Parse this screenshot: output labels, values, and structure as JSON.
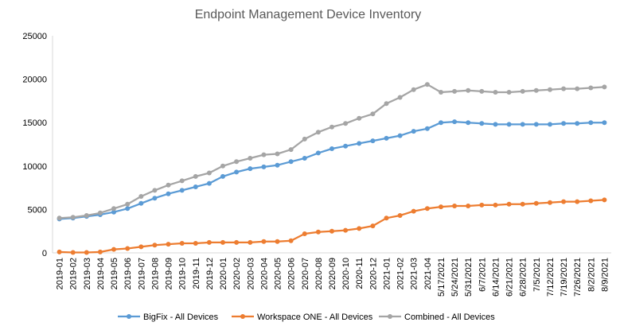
{
  "chart_data": {
    "type": "line",
    "title": "Endpoint Management Device Inventory",
    "xlabel": "",
    "ylabel": "",
    "ylim": [
      0,
      25000
    ],
    "yticks": [
      0,
      5000,
      10000,
      15000,
      20000,
      25000
    ],
    "grid": false,
    "legend_position": "bottom",
    "categories": [
      "2019-01",
      "2019-02",
      "2019-03",
      "2019-04",
      "2019-05",
      "2019-06",
      "2019-07",
      "2019-08",
      "2019-09",
      "2019-10",
      "2019-11",
      "2019-12",
      "2020-01",
      "2020-02",
      "2020-03",
      "2020-04",
      "2020-05",
      "2020-06",
      "2020-07",
      "2020-08",
      "2020-09",
      "2020-10",
      "2020-11",
      "2020-12",
      "2021-01",
      "2021-02",
      "2021-03",
      "2021-04",
      "5/17/2021",
      "5/24/2021",
      "5/31/2021",
      "6/7/2021",
      "6/14/2021",
      "6/21/2021",
      "6/28/2021",
      "7/5/2021",
      "7/12/2021",
      "7/19/2021",
      "7/26/2021",
      "8/2/2021",
      "8/9/2021"
    ],
    "series": [
      {
        "name": "BigFix - All Devices",
        "color": "#5B9BD5",
        "values": [
          3900,
          4000,
          4200,
          4400,
          4700,
          5100,
          5700,
          6300,
          6800,
          7200,
          7600,
          8000,
          8800,
          9300,
          9700,
          9900,
          10100,
          10500,
          10900,
          11500,
          12000,
          12300,
          12600,
          12900,
          13200,
          13500,
          14000,
          14300,
          15000,
          15100,
          15000,
          14900,
          14800,
          14800,
          14800,
          14800,
          14800,
          14900,
          14900,
          15000,
          15000
        ]
      },
      {
        "name": "Workspace ONE - All Devices",
        "color": "#ED7D31",
        "values": [
          100,
          50,
          50,
          100,
          400,
          500,
          700,
          900,
          1000,
          1100,
          1100,
          1200,
          1200,
          1200,
          1200,
          1300,
          1300,
          1400,
          2200,
          2400,
          2500,
          2600,
          2800,
          3100,
          4000,
          4300,
          4800,
          5100,
          5300,
          5400,
          5400,
          5500,
          5500,
          5600,
          5600,
          5700,
          5800,
          5900,
          5900,
          6000,
          6100
        ]
      },
      {
        "name": "Combined - All Devices",
        "color": "#A5A5A5",
        "values": [
          4000,
          4100,
          4300,
          4600,
          5100,
          5600,
          6500,
          7200,
          7800,
          8300,
          8800,
          9200,
          10000,
          10500,
          10900,
          11300,
          11400,
          11900,
          13100,
          13900,
          14500,
          14900,
          15500,
          16000,
          17200,
          17900,
          18800,
          19400,
          18500,
          18600,
          18700,
          18600,
          18500,
          18500,
          18600,
          18700,
          18800,
          18900,
          18900,
          19000,
          19100
        ]
      }
    ]
  }
}
